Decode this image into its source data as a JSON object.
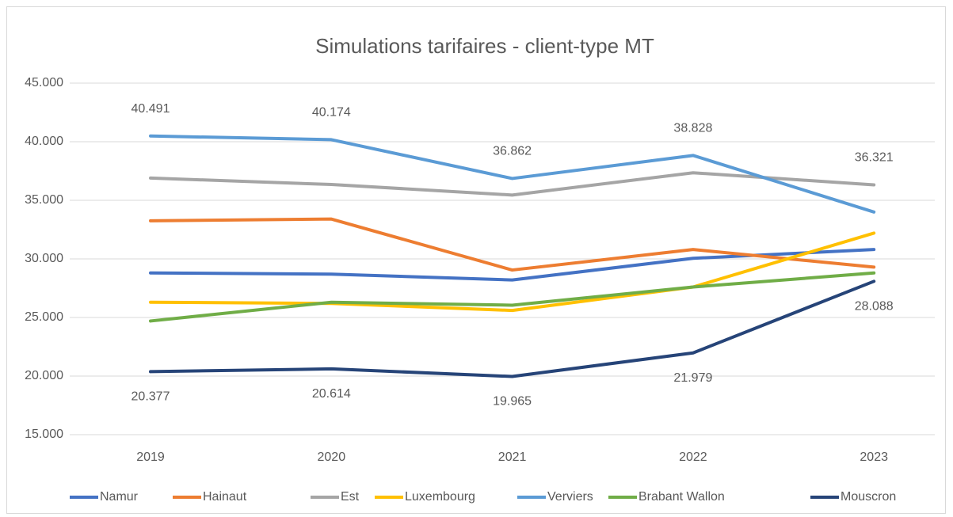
{
  "chart_data": {
    "type": "line",
    "title": "Simulations tarifaires - client-type MT",
    "categories": [
      "2019",
      "2020",
      "2021",
      "2022",
      "2023"
    ],
    "series": [
      {
        "name": "Namur",
        "color": "#4472c4",
        "values": [
          28800,
          28700,
          28200,
          30050,
          30800
        ]
      },
      {
        "name": "Hainaut",
        "color": "#ed7d31",
        "values": [
          33250,
          33400,
          29050,
          30800,
          29300
        ]
      },
      {
        "name": "Est",
        "color": "#a5a5a5",
        "values": [
          36900,
          36350,
          35450,
          37350,
          36321
        ],
        "value_labels": [
          null,
          null,
          null,
          null,
          "36.321"
        ]
      },
      {
        "name": "Luxembourg",
        "color": "#ffc000",
        "values": [
          26300,
          26200,
          25600,
          27600,
          32200
        ]
      },
      {
        "name": "Verviers",
        "color": "#5b9bd5",
        "values": [
          40491,
          40174,
          36862,
          38828,
          34000
        ],
        "value_labels": [
          "40.491",
          "40.174",
          "36.862",
          "38.828",
          null
        ]
      },
      {
        "name": "Brabant Wallon",
        "color": "#70ad47",
        "values": [
          24700,
          26300,
          26050,
          27600,
          28800
        ]
      },
      {
        "name": "Mouscron",
        "color": "#264478",
        "values": [
          20377,
          20614,
          19965,
          21979,
          28088
        ],
        "value_labels": [
          "20.377",
          "20.614",
          "19.965",
          "21.979",
          "28.088"
        ]
      }
    ],
    "ylim": [
      15000,
      45000
    ],
    "yticks": [
      {
        "value": 15000,
        "label": "15.000"
      },
      {
        "value": 20000,
        "label": "20.000"
      },
      {
        "value": 25000,
        "label": "25.000"
      },
      {
        "value": 30000,
        "label": "30.000"
      },
      {
        "value": 35000,
        "label": "35.000"
      },
      {
        "value": 40000,
        "label": "40.000"
      },
      {
        "value": 45000,
        "label": "45.000"
      }
    ],
    "grid": true,
    "legend": "bottom"
  }
}
